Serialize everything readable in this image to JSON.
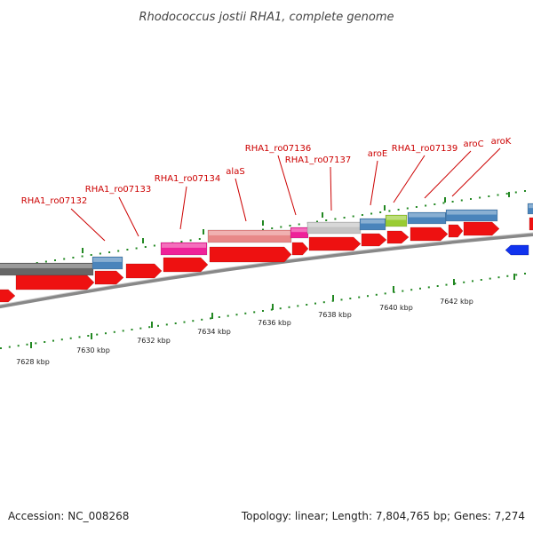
{
  "title": "Rhodococcus jostii RHA1, complete genome",
  "footer": {
    "accession": "Accession: NC_008268",
    "summary": "Topology: linear; Length: 7,804,765 bp; Genes: 7,274"
  },
  "scale_labels": [
    "7628 kbp",
    "7630 kbp",
    "7632 kbp",
    "7634 kbp",
    "7636 kbp",
    "7638 kbp",
    "7640 kbp",
    "7642 kbp"
  ],
  "gene_labels": [
    "RHA1_ro07132",
    "RHA1_ro07133",
    "RHA1_ro07134",
    "alaS",
    "RHA1_ro07136",
    "RHA1_ro07137",
    "aroE",
    "RHA1_ro07139",
    "aroC",
    "aroK"
  ],
  "colors": {
    "cds": "#ee1111",
    "pathway_blue": "#4a84bb",
    "dark_gray": "#666666",
    "light_gray": "#c4c4c4",
    "magenta": "#ee2299",
    "salmon": "#e88888",
    "yellow_green": "#99cc33",
    "backbone": "#888888",
    "tick_green": "#228822",
    "label_red": "#cc0000"
  }
}
